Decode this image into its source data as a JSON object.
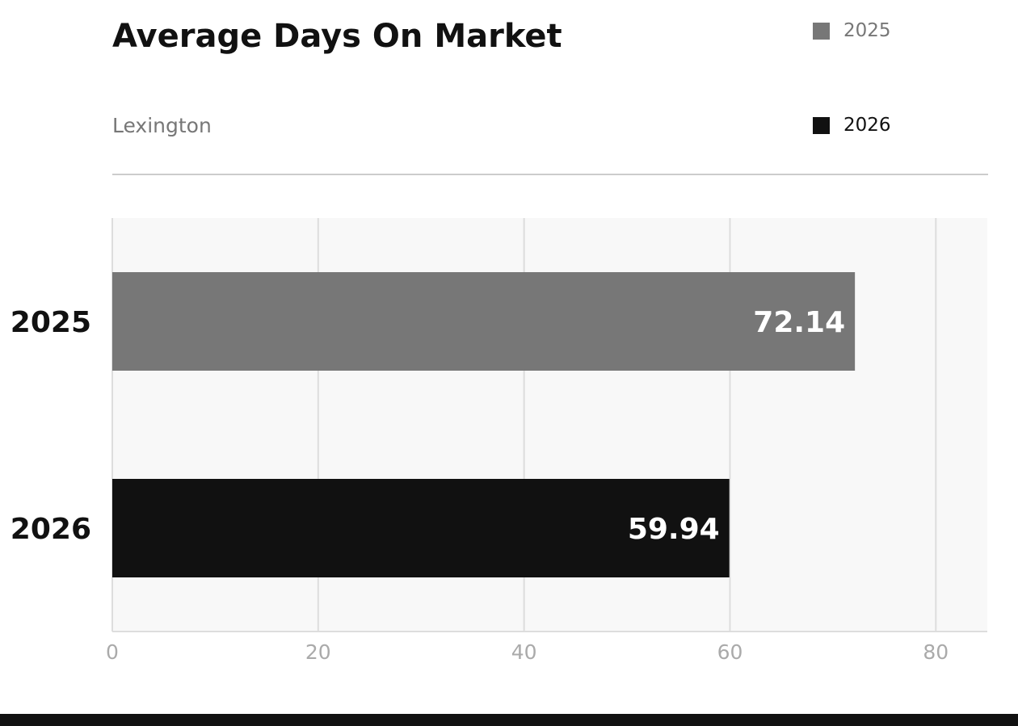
{
  "header": {
    "title": "Average Days On Market",
    "subtitle": "Lexington"
  },
  "legend": [
    {
      "label": "2025",
      "color": "#777777",
      "text_color": "#777777"
    },
    {
      "label": "2026",
      "color": "#111111",
      "text_color": "#111111"
    }
  ],
  "chart_data": {
    "type": "bar",
    "orientation": "horizontal",
    "title": "Average Days On Market",
    "subtitle": "Lexington",
    "categories": [
      "2025",
      "2026"
    ],
    "values": [
      72.14,
      59.94
    ],
    "value_labels": [
      "72.14",
      "59.94"
    ],
    "colors": [
      "#777777",
      "#111111"
    ],
    "xlim": [
      0,
      85
    ],
    "xticks": [
      0,
      20,
      40,
      60,
      80
    ],
    "xlabel": "",
    "ylabel": "",
    "grid": true,
    "legend_position": "top-right",
    "plot_background": "#f8f8f8"
  }
}
